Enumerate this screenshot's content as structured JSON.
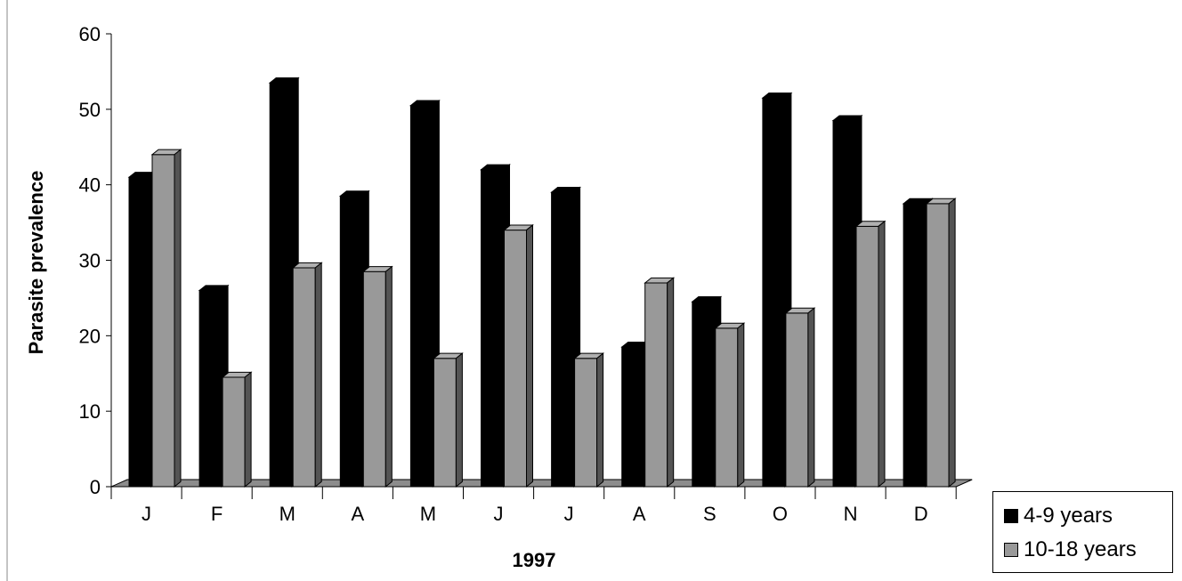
{
  "chart_data": {
    "type": "bar",
    "categories": [
      "J",
      "F",
      "M",
      "A",
      "M",
      "J",
      "J",
      "A",
      "S",
      "O",
      "N",
      "D"
    ],
    "series": [
      {
        "name": "4-9 years",
        "color": "#000000",
        "values": [
          41,
          26,
          53.5,
          38.5,
          50.5,
          42,
          39,
          18.5,
          24.5,
          51.5,
          48.5,
          37.5
        ]
      },
      {
        "name": "10-18 years",
        "color": "#999999",
        "values": [
          44,
          14.5,
          29,
          28.5,
          17,
          34,
          17,
          27,
          21,
          23,
          34.5,
          37.5
        ]
      }
    ],
    "xlabel": "1997",
    "ylabel": "Parasite prevalence",
    "ylim": [
      0,
      60
    ],
    "yticks": [
      "0",
      "10",
      "20",
      "30",
      "40",
      "50",
      "60"
    ],
    "grid": false,
    "legend_position": "bottom-right"
  }
}
